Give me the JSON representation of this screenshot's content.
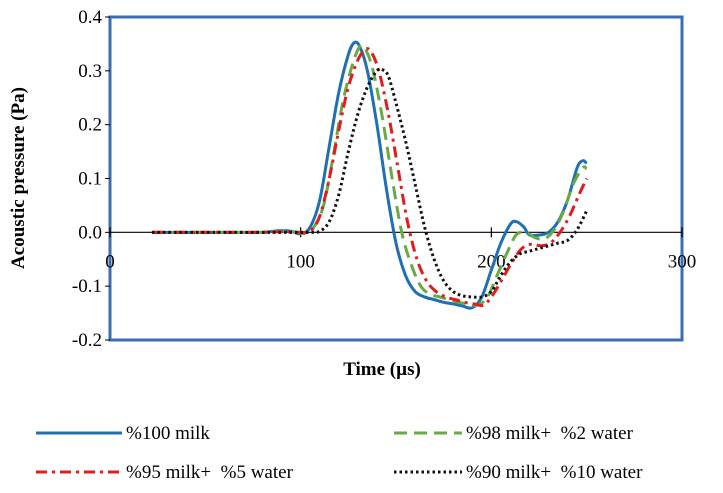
{
  "chart_data": {
    "type": "line",
    "title": "",
    "xlabel": "Time (µs)",
    "ylabel": "Acoustic pressure (Pa)",
    "xlim": [
      0,
      300
    ],
    "ylim": [
      -0.2,
      0.4
    ],
    "xticks": [
      0,
      100,
      200,
      300
    ],
    "yticks": [
      -0.2,
      -0.1,
      0.0,
      0.1,
      0.2,
      0.3,
      0.4
    ],
    "xtick_labels": [
      "0",
      "100",
      "200",
      "300"
    ],
    "ytick_labels": [
      "-0.2",
      "-0.1",
      "0.0",
      "0.1",
      "0.2",
      "0.3",
      "0.4"
    ],
    "grid": false,
    "legend_position": "bottom",
    "series": [
      {
        "name": "%100 milk",
        "color": "#1f6fb4",
        "dash": "solid",
        "x": [
          22,
          60,
          80,
          88,
          95,
          100,
          105,
          110,
          115,
          120,
          125,
          128,
          131,
          135,
          140,
          145,
          150,
          155,
          160,
          165,
          170,
          175,
          180,
          185,
          190,
          195,
          200,
          205,
          210,
          213,
          217,
          220,
          225,
          230,
          235,
          240,
          245,
          248,
          250
        ],
        "y": [
          0.0,
          0.0,
          0.0,
          0.003,
          0.002,
          -0.003,
          0.01,
          0.06,
          0.16,
          0.26,
          0.33,
          0.352,
          0.345,
          0.3,
          0.2,
          0.08,
          -0.02,
          -0.08,
          -0.11,
          -0.12,
          -0.125,
          -0.13,
          -0.133,
          -0.137,
          -0.14,
          -0.12,
          -0.07,
          -0.02,
          0.015,
          0.02,
          0.01,
          -0.005,
          -0.005,
          0.0,
          0.02,
          0.06,
          0.12,
          0.133,
          0.128
        ]
      },
      {
        "name": "%98 milk+  %2 water",
        "color": "#6aaa46",
        "dash": "dash",
        "x": [
          22,
          60,
          80,
          90,
          97,
          102,
          107,
          112,
          117,
          122,
          127,
          131,
          134,
          138,
          143,
          148,
          153,
          158,
          163,
          168,
          173,
          178,
          183,
          188,
          193,
          198,
          203,
          208,
          213,
          218,
          223,
          228,
          233,
          238,
          243,
          248,
          250
        ],
        "y": [
          0.0,
          0.0,
          0.0,
          0.002,
          0.001,
          -0.002,
          0.01,
          0.05,
          0.14,
          0.24,
          0.31,
          0.345,
          0.34,
          0.3,
          0.21,
          0.1,
          0.0,
          -0.06,
          -0.1,
          -0.115,
          -0.12,
          -0.125,
          -0.13,
          -0.133,
          -0.135,
          -0.12,
          -0.08,
          -0.04,
          -0.005,
          0.0,
          -0.01,
          -0.012,
          0.005,
          0.04,
          0.09,
          0.12,
          0.118
        ]
      },
      {
        "name": "%95 milk+  %5 water",
        "color": "#e21c1c",
        "dash": "dashdot",
        "x": [
          22,
          60,
          80,
          90,
          100,
          105,
          110,
          115,
          120,
          125,
          130,
          134,
          137,
          141,
          146,
          151,
          156,
          161,
          166,
          171,
          176,
          181,
          186,
          191,
          196,
          201,
          206,
          211,
          216,
          221,
          226,
          231,
          236,
          241,
          246,
          250
        ],
        "y": [
          0.0,
          0.0,
          0.0,
          0.001,
          0.0,
          0.002,
          0.03,
          0.1,
          0.19,
          0.27,
          0.32,
          0.34,
          0.335,
          0.3,
          0.22,
          0.12,
          0.02,
          -0.05,
          -0.09,
          -0.11,
          -0.12,
          -0.125,
          -0.13,
          -0.133,
          -0.135,
          -0.115,
          -0.085,
          -0.055,
          -0.03,
          -0.022,
          -0.025,
          -0.02,
          0.0,
          0.03,
          0.07,
          0.1
        ]
      },
      {
        "name": "%90 milk+  %10 water",
        "color": "#111111",
        "dash": "dot",
        "x": [
          22,
          60,
          80,
          95,
          105,
          110,
          115,
          120,
          125,
          130,
          135,
          140,
          143,
          146,
          150,
          155,
          160,
          165,
          170,
          175,
          180,
          185,
          190,
          195,
          200,
          205,
          210,
          215,
          220,
          225,
          230,
          235,
          240,
          245,
          250
        ],
        "y": [
          0.0,
          0.0,
          0.0,
          0.0,
          0.0,
          0.002,
          0.02,
          0.07,
          0.15,
          0.22,
          0.27,
          0.3,
          0.302,
          0.29,
          0.24,
          0.17,
          0.09,
          0.01,
          -0.05,
          -0.09,
          -0.11,
          -0.118,
          -0.12,
          -0.12,
          -0.11,
          -0.08,
          -0.055,
          -0.04,
          -0.035,
          -0.03,
          -0.025,
          -0.02,
          -0.015,
          0.005,
          0.04
        ]
      }
    ]
  }
}
